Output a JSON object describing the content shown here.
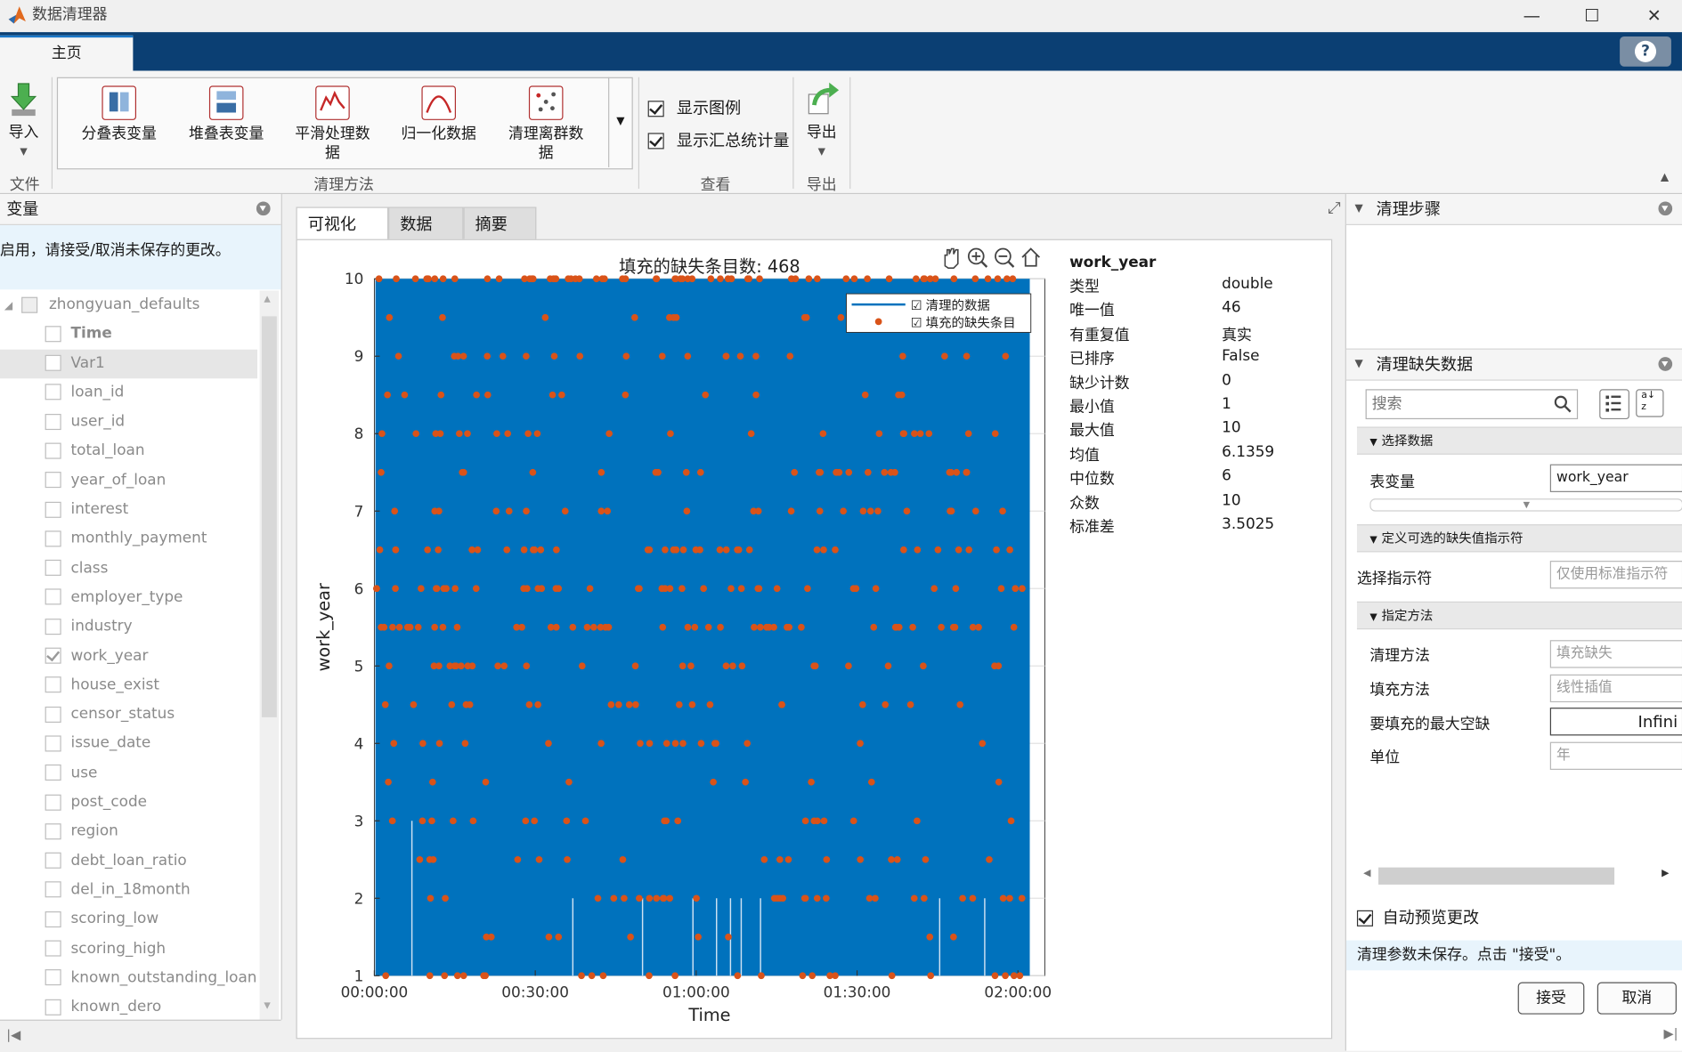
{
  "window": {
    "title": "数据清理器",
    "minimize": "—",
    "maximize": "☐",
    "close": "✕"
  },
  "ribbon": {
    "home_tab": "主页",
    "help": "?",
    "file": {
      "import_label": "导入",
      "group": "文件"
    },
    "clean": {
      "group": "清理方法",
      "unstack": "分叠表变量",
      "stack": "堆叠表变量",
      "smooth_line1": "平滑处理数",
      "smooth_line2": "据",
      "normalize": "归一化数据",
      "outliers_line1": "清理离群数",
      "outliers_line2": "据"
    },
    "view": {
      "group": "查看",
      "show_legend": "显示图例",
      "show_summary": "显示汇总统计量"
    },
    "export": {
      "group": "导出",
      "export_label": "导出"
    }
  },
  "left_panel": {
    "title": "变量",
    "notice": "要启用，请接受/取消未保存的更改。",
    "table_name": "zhongyuan_defaults",
    "variables": [
      {
        "name": "Time",
        "checked": false,
        "bold": true
      },
      {
        "name": "Var1",
        "checked": false,
        "selected": true
      },
      {
        "name": "loan_id",
        "checked": false
      },
      {
        "name": "user_id",
        "checked": false
      },
      {
        "name": "total_loan",
        "checked": false
      },
      {
        "name": "year_of_loan",
        "checked": false
      },
      {
        "name": "interest",
        "checked": false
      },
      {
        "name": "monthly_payment",
        "checked": false
      },
      {
        "name": "class",
        "checked": false
      },
      {
        "name": "employer_type",
        "checked": false
      },
      {
        "name": "industry",
        "checked": false
      },
      {
        "name": "work_year",
        "checked": true
      },
      {
        "name": "house_exist",
        "checked": false
      },
      {
        "name": "censor_status",
        "checked": false
      },
      {
        "name": "issue_date",
        "checked": false
      },
      {
        "name": "use",
        "checked": false
      },
      {
        "name": "post_code",
        "checked": false
      },
      {
        "name": "region",
        "checked": false
      },
      {
        "name": "debt_loan_ratio",
        "checked": false
      },
      {
        "name": "del_in_18month",
        "checked": false
      },
      {
        "name": "scoring_low",
        "checked": false
      },
      {
        "name": "scoring_high",
        "checked": false
      },
      {
        "name": "known_outstanding_loan",
        "checked": false
      },
      {
        "name": "known_dero",
        "checked": false
      }
    ]
  },
  "center": {
    "tabs": [
      "可视化",
      "数据",
      "摘要"
    ],
    "chart_title": "填充的缺失条目数: 468",
    "stats": {
      "var_name": "work_year",
      "rows": [
        {
          "label": "类型",
          "value": "double"
        },
        {
          "label": "唯一值",
          "value": "46"
        },
        {
          "label": "有重复值",
          "value": "真实"
        },
        {
          "label": "已排序",
          "value": "False"
        },
        {
          "label": "缺少计数",
          "value": "0"
        },
        {
          "label": "最小值",
          "value": "1"
        },
        {
          "label": "最大值",
          "value": "10"
        },
        {
          "label": "均值",
          "value": "6.1359"
        },
        {
          "label": "中位数",
          "value": "6"
        },
        {
          "label": "众数",
          "value": "10"
        },
        {
          "label": "标准差",
          "value": "3.5025"
        }
      ]
    }
  },
  "chart_data": {
    "type": "scatter",
    "title": "填充的缺失条目数: 468",
    "xlabel": "Time",
    "ylabel": "work_year",
    "xticks": [
      "00:00:00",
      "00:30:00",
      "01:00:00",
      "01:30:00",
      "02:00:00"
    ],
    "yticks": [
      1,
      2,
      3,
      4,
      5,
      6,
      7,
      8,
      9,
      10
    ],
    "xlim_seconds": [
      0,
      7500
    ],
    "ylim": [
      1,
      10
    ],
    "grid": true,
    "legend_position": "top-right",
    "series": [
      {
        "name": "清理的数据",
        "style": "line",
        "color": "#0072bd"
      },
      {
        "name": "填充的缺失条目",
        "style": "marker",
        "color": "#d95319"
      }
    ]
  },
  "right_panel": {
    "steps_title": "清理步骤",
    "missing_title": "清理缺失数据",
    "search_placeholder": "搜索",
    "select_data_section": "选择数据",
    "table_var_label": "表变量",
    "table_var_value": "work_year",
    "indicator_section": "定义可选的缺失值指示符",
    "indicator_label": "选择指示符",
    "indicator_value": "仅使用标准指示符",
    "method_section": "指定方法",
    "clean_method_label": "清理方法",
    "clean_method_value": "填充缺失",
    "fill_method_label": "填充方法",
    "fill_method_value": "线性插值",
    "max_gap_label": "要填充的最大空缺",
    "max_gap_value": "Infini",
    "unit_label": "单位",
    "unit_value": "年",
    "auto_preview": "自动预览更改",
    "status": "清理参数未保存。点击 \"接受\"。",
    "accept": "接受",
    "cancel": "取消"
  }
}
